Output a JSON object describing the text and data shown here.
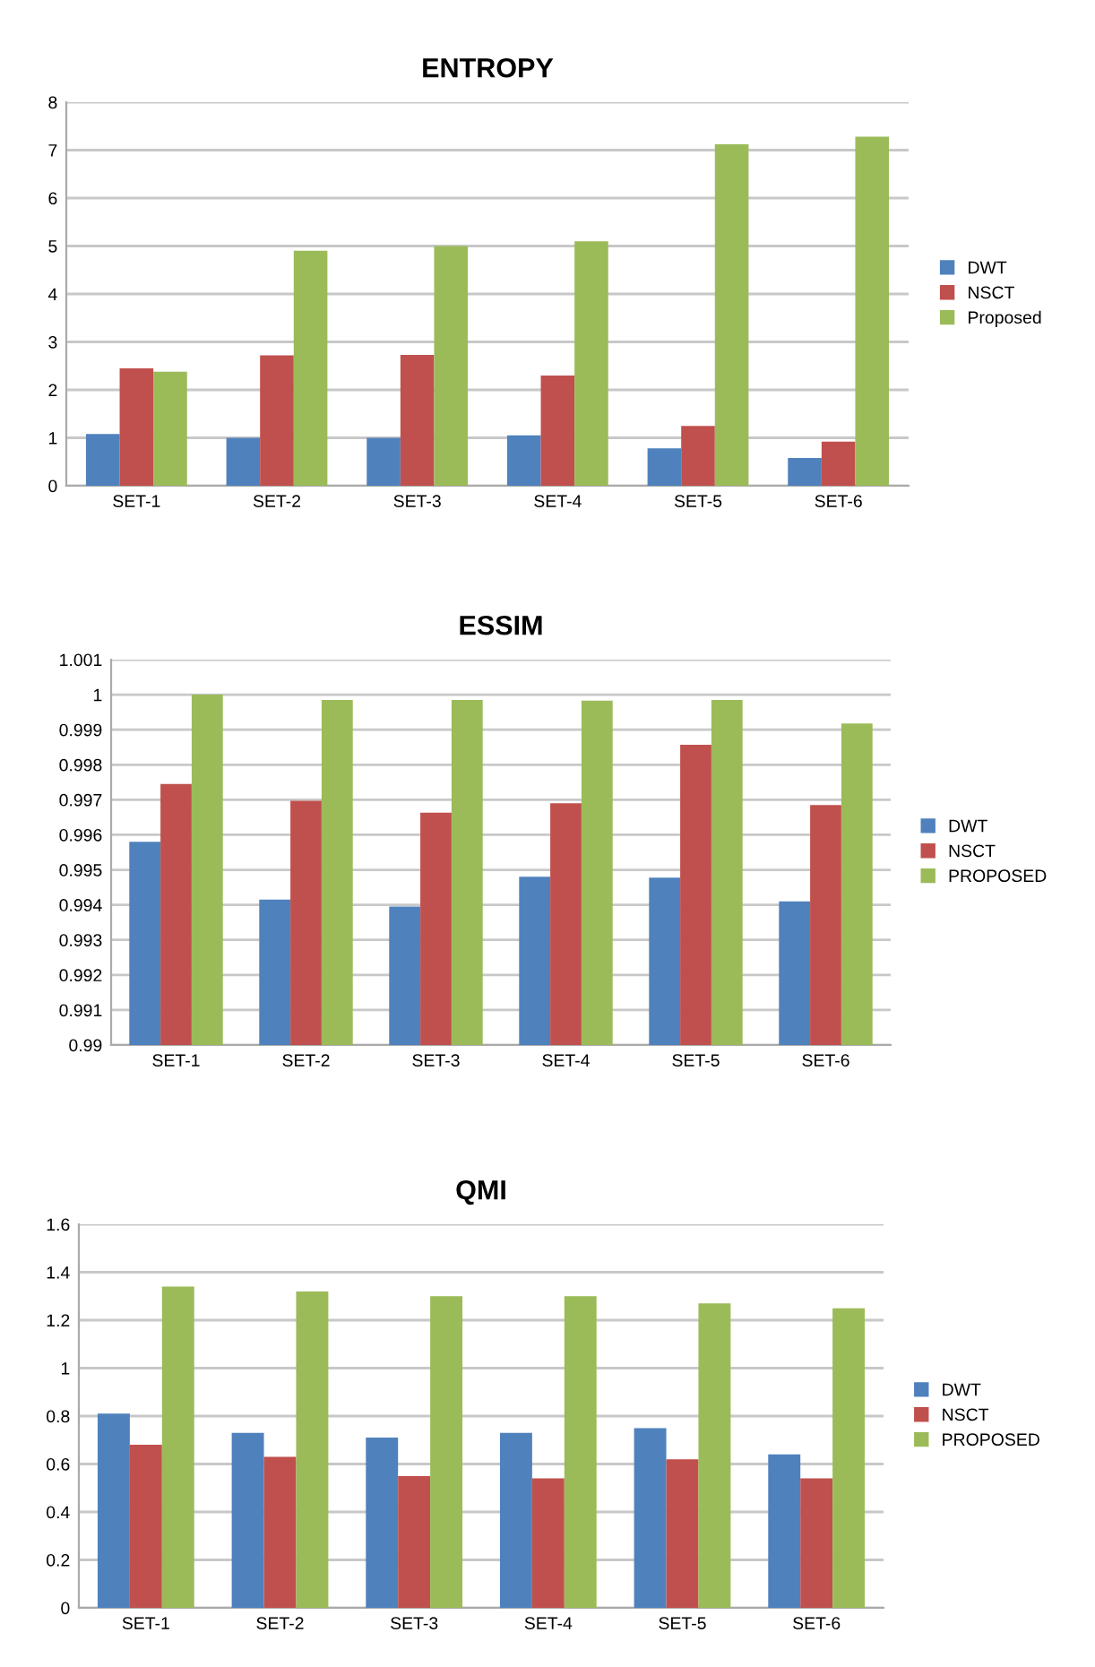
{
  "chart_data": [
    {
      "type": "bar",
      "title": "ENTROPY",
      "categories": [
        "SET-1",
        "SET-2",
        "SET-3",
        "SET-4",
        "SET-5",
        "SET-6"
      ],
      "series": [
        {
          "name": "DWT",
          "color": "#4f81bd",
          "values": [
            1.08,
            1.0,
            1.0,
            1.05,
            0.78,
            0.58
          ]
        },
        {
          "name": "NSCT",
          "color": "#c0504d",
          "values": [
            2.45,
            2.72,
            2.73,
            2.3,
            1.25,
            0.92
          ]
        },
        {
          "name": "Proposed",
          "color": "#9bbb59",
          "values": [
            2.38,
            4.9,
            5.0,
            5.1,
            7.12,
            7.28
          ]
        }
      ],
      "ylim": [
        0,
        8
      ],
      "yticks": [
        0,
        1,
        2,
        3,
        4,
        5,
        6,
        7,
        8
      ],
      "grid": "y",
      "legend": "right"
    },
    {
      "type": "bar",
      "title": "ESSIM",
      "categories": [
        "SET-1",
        "SET-2",
        "SET-3",
        "SET-4",
        "SET-5",
        "SET-6"
      ],
      "series": [
        {
          "name": "DWT",
          "color": "#4f81bd",
          "values": [
            0.9958,
            0.99415,
            0.99395,
            0.9948,
            0.99478,
            0.9941
          ]
        },
        {
          "name": "NSCT",
          "color": "#c0504d",
          "values": [
            0.99745,
            0.99697,
            0.99663,
            0.9969,
            0.99857,
            0.99685
          ]
        },
        {
          "name": "PROPOSED",
          "color": "#9bbb59",
          "values": [
            1.0,
            0.99985,
            0.99985,
            0.99983,
            0.99985,
            0.99918
          ]
        }
      ],
      "ylim": [
        0.99,
        1.001
      ],
      "yticks": [
        0.99,
        0.991,
        0.992,
        0.993,
        0.994,
        0.995,
        0.996,
        0.997,
        0.998,
        0.999,
        1,
        1.001
      ],
      "grid": "y",
      "legend": "right"
    },
    {
      "type": "bar",
      "title": "QMI",
      "categories": [
        "SET-1",
        "SET-2",
        "SET-3",
        "SET-4",
        "SET-5",
        "SET-6"
      ],
      "series": [
        {
          "name": "DWT",
          "color": "#4f81bd",
          "values": [
            0.81,
            0.73,
            0.71,
            0.73,
            0.75,
            0.64
          ]
        },
        {
          "name": "NSCT",
          "color": "#c0504d",
          "values": [
            0.68,
            0.63,
            0.55,
            0.54,
            0.62,
            0.54
          ]
        },
        {
          "name": "PROPOSED",
          "color": "#9bbb59",
          "values": [
            1.34,
            1.32,
            1.3,
            1.3,
            1.27,
            1.25
          ]
        }
      ],
      "ylim": [
        0,
        1.6
      ],
      "yticks": [
        0,
        0.2,
        0.4,
        0.6,
        0.8,
        1,
        1.2,
        1.4,
        1.6
      ],
      "grid": "y",
      "legend": "right"
    }
  ]
}
